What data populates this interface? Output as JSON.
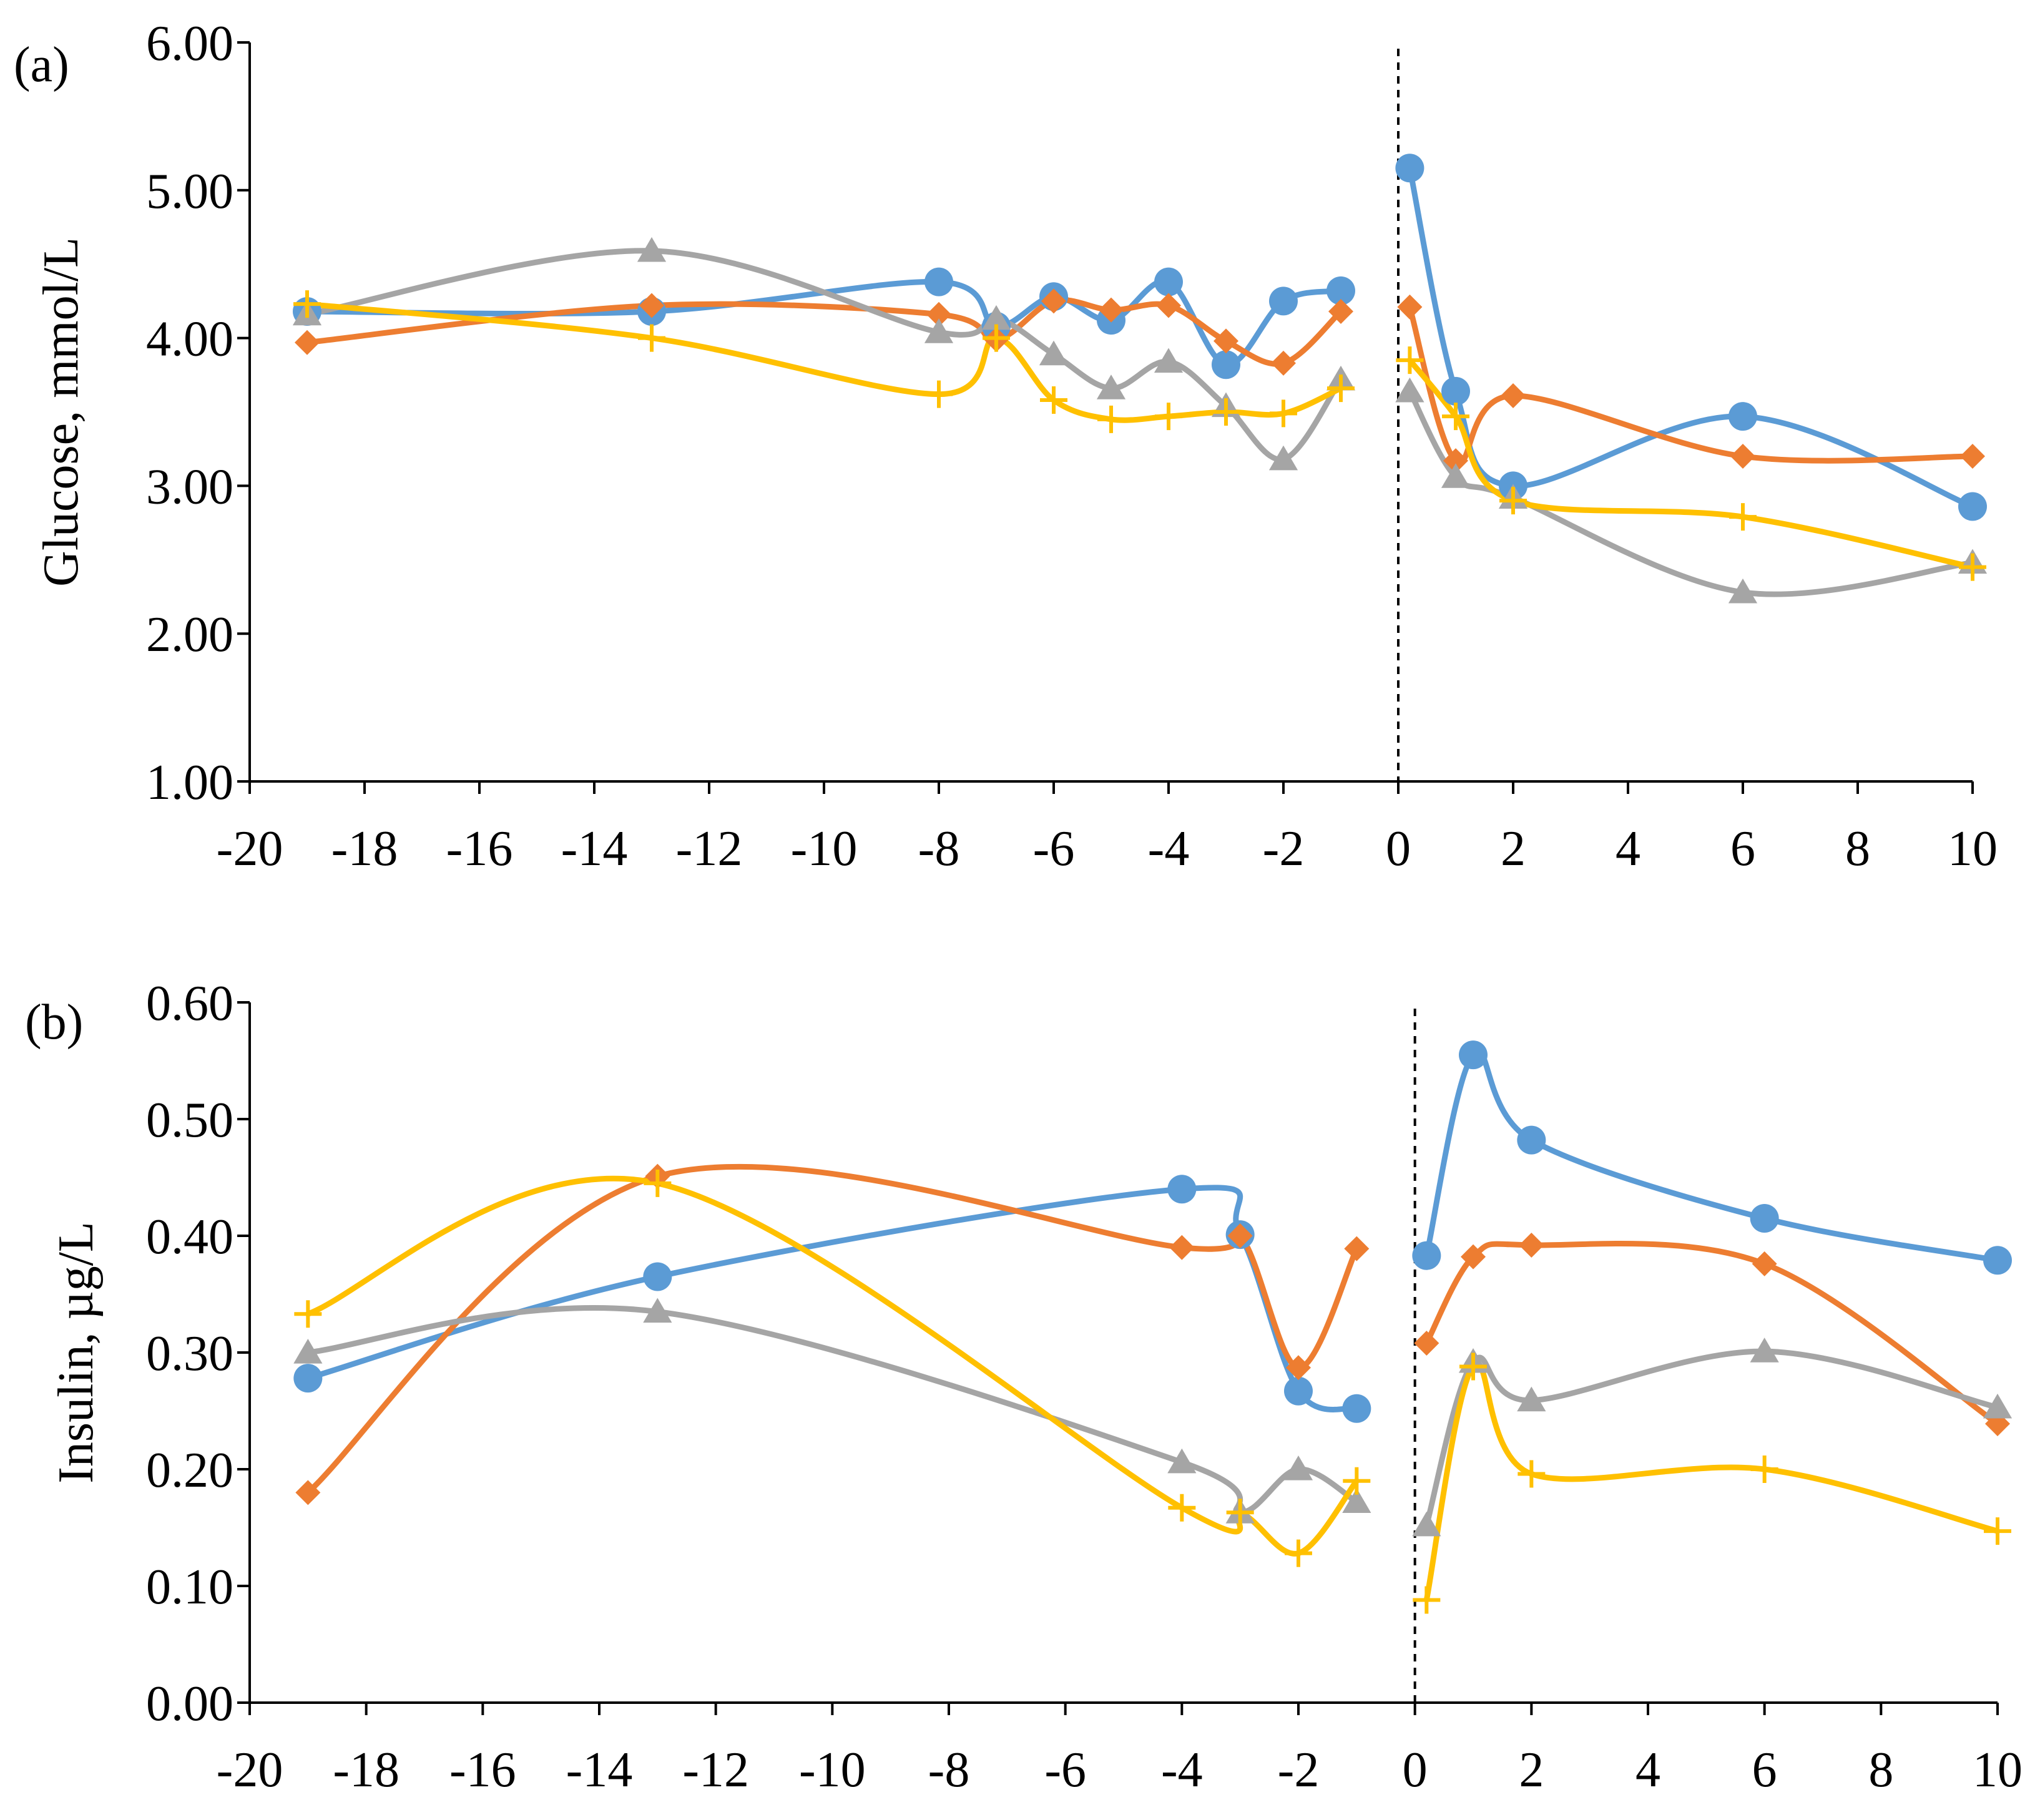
{
  "chart_data": [
    {
      "type": "line",
      "panel_label": "(a)",
      "title": "",
      "xlabel": "",
      "ylabel": "Glucose, mmol/L",
      "xlim": [
        -20,
        10
      ],
      "ylim": [
        1.0,
        6.0
      ],
      "x_ticks": [
        "-20",
        "-18",
        "-16",
        "-14",
        "-12",
        "-10",
        "-8",
        "-6",
        "-4",
        "-2",
        "0",
        "2",
        "4",
        "6",
        "8",
        "10"
      ],
      "y_ticks": [
        "1.00",
        "2.00",
        "3.00",
        "4.00",
        "5.00",
        "6.00"
      ],
      "divider_x": 0,
      "grid": false,
      "series": [
        {
          "name": "Series 1 (circle)",
          "color": "#5B9BD5",
          "marker": "circle",
          "segments": [
            [
              [
                -19,
                4.18
              ],
              [
                -13,
                4.18
              ],
              [
                -8,
                4.38
              ],
              [
                -7,
                4.08
              ],
              [
                -6,
                4.28
              ],
              [
                -5,
                4.12
              ],
              [
                -4,
                4.38
              ],
              [
                -3,
                3.82
              ],
              [
                -2,
                4.25
              ],
              [
                -1,
                4.32
              ]
            ],
            [
              [
                0.2,
                5.15
              ],
              [
                1,
                3.64
              ],
              [
                2,
                3.0
              ],
              [
                6,
                3.47
              ],
              [
                10,
                2.86
              ]
            ]
          ]
        },
        {
          "name": "Series 2 (diamond)",
          "color": "#ED7D31",
          "marker": "diamond",
          "segments": [
            [
              [
                -19,
                3.97
              ],
              [
                -13,
                4.22
              ],
              [
                -8,
                4.16
              ],
              [
                -7,
                3.99
              ],
              [
                -6,
                4.25
              ],
              [
                -5,
                4.19
              ],
              [
                -4,
                4.22
              ],
              [
                -3,
                3.98
              ],
              [
                -2,
                3.83
              ],
              [
                -1,
                4.18
              ]
            ],
            [
              [
                0.2,
                4.21
              ],
              [
                1,
                3.17
              ],
              [
                2,
                3.61
              ],
              [
                6,
                3.2
              ],
              [
                10,
                3.2
              ]
            ]
          ]
        },
        {
          "name": "Series 3 (triangle)",
          "color": "#A5A5A5",
          "marker": "triangle",
          "segments": [
            [
              [
                -19,
                4.16
              ],
              [
                -13,
                4.59
              ],
              [
                -8,
                4.04
              ],
              [
                -7,
                4.13
              ],
              [
                -6,
                3.89
              ],
              [
                -5,
                3.66
              ],
              [
                -4,
                3.84
              ],
              [
                -3,
                3.54
              ],
              [
                -2,
                3.18
              ],
              [
                -1,
                3.72
              ]
            ],
            [
              [
                0.2,
                3.64
              ],
              [
                1,
                3.06
              ],
              [
                2,
                2.92
              ],
              [
                6,
                2.28
              ],
              [
                10,
                2.48
              ]
            ]
          ]
        },
        {
          "name": "Series 4 (plus)",
          "color": "#FFC000",
          "marker": "plus",
          "segments": [
            [
              [
                -19,
                4.23
              ],
              [
                -13,
                4.0
              ],
              [
                -8,
                3.62
              ],
              [
                -7,
                4.0
              ],
              [
                -6,
                3.58
              ],
              [
                -5,
                3.45
              ],
              [
                -4,
                3.47
              ],
              [
                -3,
                3.5
              ],
              [
                -2,
                3.49
              ],
              [
                -1,
                3.66
              ]
            ],
            [
              [
                0.2,
                3.85
              ],
              [
                1,
                3.47
              ],
              [
                2,
                2.9
              ],
              [
                6,
                2.79
              ],
              [
                10,
                2.45
              ]
            ]
          ]
        }
      ]
    },
    {
      "type": "line",
      "panel_label": "(b)",
      "title": "",
      "xlabel": "",
      "ylabel": "Insulin, µg/L",
      "xlim": [
        -20,
        10
      ],
      "ylim": [
        0.0,
        0.6
      ],
      "x_ticks": [
        "-20",
        "-18",
        "-16",
        "-14",
        "-12",
        "-10",
        "-8",
        "-6",
        "-4",
        "-2",
        "0",
        "2",
        "4",
        "6",
        "8",
        "10"
      ],
      "y_ticks": [
        "0.00",
        "0.10",
        "0.20",
        "0.30",
        "0.40",
        "0.50",
        "0.60"
      ],
      "divider_x": 0,
      "grid": false,
      "series": [
        {
          "name": "Series 1 (circle)",
          "color": "#5B9BD5",
          "marker": "circle",
          "segments": [
            [
              [
                -19,
                0.278
              ],
              [
                -13,
                0.365
              ],
              [
                -4,
                0.44
              ],
              [
                -3,
                0.401
              ],
              [
                -2,
                0.267
              ],
              [
                -1,
                0.252
              ]
            ],
            [
              [
                0.2,
                0.383
              ],
              [
                1,
                0.555
              ],
              [
                2,
                0.482
              ],
              [
                6,
                0.415
              ],
              [
                10,
                0.379
              ]
            ]
          ]
        },
        {
          "name": "Series 2 (diamond)",
          "color": "#ED7D31",
          "marker": "diamond",
          "segments": [
            [
              [
                -19,
                0.18
              ],
              [
                -13,
                0.451
              ],
              [
                -4,
                0.39
              ],
              [
                -3,
                0.4
              ],
              [
                -2,
                0.287
              ],
              [
                -1,
                0.389
              ]
            ],
            [
              [
                0.2,
                0.308
              ],
              [
                1,
                0.382
              ],
              [
                2,
                0.392
              ],
              [
                6,
                0.376
              ],
              [
                10,
                0.239
              ]
            ]
          ]
        },
        {
          "name": "Series 3 (triangle)",
          "color": "#A5A5A5",
          "marker": "triangle",
          "segments": [
            [
              [
                -19,
                0.3
              ],
              [
                -13,
                0.335
              ],
              [
                -4,
                0.206
              ],
              [
                -3,
                0.163
              ],
              [
                -2,
                0.2
              ],
              [
                -1,
                0.172
              ]
            ],
            [
              [
                0.2,
                0.152
              ],
              [
                1,
                0.292
              ],
              [
                2,
                0.259
              ],
              [
                6,
                0.301
              ],
              [
                10,
                0.253
              ]
            ]
          ]
        },
        {
          "name": "Series 4 (plus)",
          "color": "#FFC000",
          "marker": "plus",
          "segments": [
            [
              [
                -19,
                0.333
              ],
              [
                -13,
                0.445
              ],
              [
                -4,
                0.167
              ],
              [
                -3,
                0.163
              ],
              [
                -2,
                0.128
              ],
              [
                -1,
                0.19
              ]
            ],
            [
              [
                0.2,
                0.088
              ],
              [
                1,
                0.288
              ],
              [
                2,
                0.196
              ],
              [
                6,
                0.2
              ],
              [
                10,
                0.147
              ]
            ]
          ]
        }
      ]
    }
  ]
}
